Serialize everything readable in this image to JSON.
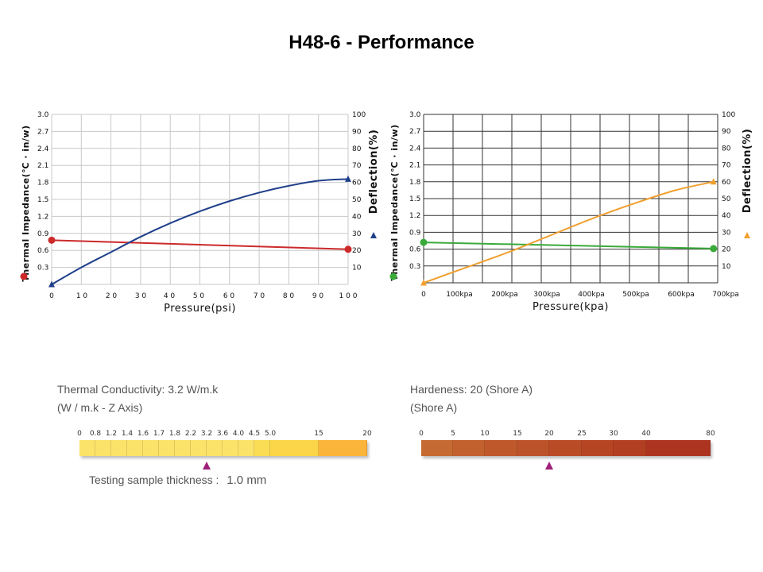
{
  "page": {
    "title": "H48-6 - Performance"
  },
  "chart_data": [
    {
      "type": "line",
      "x_label": "Pressure(psi)",
      "x_ticks": [
        "0",
        "1 0",
        "2 0",
        "3 0",
        "4 0",
        "5 0",
        "6 0",
        "7 0",
        "8 0",
        "9 0",
        "1 0 0"
      ],
      "x_range": [
        0,
        100
      ],
      "y_left_label": "Thermal Impedance(℃ · in/w)",
      "y_left_ticks": [
        "3.0",
        "2.7",
        "2.4",
        "2.1",
        "1.8",
        "1.5",
        "1.2",
        "0.9",
        "0.6",
        "0.3"
      ],
      "y_left_range": [
        0,
        3.0
      ],
      "y_right_label": "Deflection(%)",
      "y_right_ticks": [
        "100",
        "90",
        "80",
        "70",
        "60",
        "50",
        "40",
        "30",
        "20",
        "10"
      ],
      "y_right_range": [
        0,
        100
      ],
      "left_legend_color": "#cc2a2a",
      "right_legend_color": "#1f3f8a",
      "grid_color": "#c8c8c8",
      "series": [
        {
          "name": "Thermal Impedance",
          "axis": "left",
          "color": "#cc2a2a",
          "marker": "circle",
          "x": [
            0,
            100
          ],
          "y": [
            0.78,
            0.62
          ],
          "curve": "linear"
        },
        {
          "name": "Deflection",
          "axis": "right",
          "color": "#1f3f8a",
          "marker": "triangle",
          "x": [
            0,
            10,
            20,
            30,
            40,
            50,
            60,
            70,
            80,
            90,
            100
          ],
          "y": [
            0,
            10,
            19,
            28,
            36,
            43,
            49,
            54,
            58,
            61,
            62
          ]
        }
      ]
    },
    {
      "type": "line",
      "x_label": "Pressure(kpa)",
      "x_ticks": [
        "0",
        "100kpa",
        "200kpa",
        "300kpa",
        "400kpa",
        "500kpa",
        "600kpa",
        "700kpa"
      ],
      "x_range": [
        0,
        700
      ],
      "y_left_label": "Thermal Impedance(℃ · in/w)",
      "y_left_ticks": [
        "3.0",
        "2.7",
        "2.4",
        "2.1",
        "1.8",
        "1.5",
        "1.2",
        "0.9",
        "0.6",
        "0.3"
      ],
      "y_left_range": [
        0,
        3.0
      ],
      "y_right_label": "Deflection(%)",
      "y_right_ticks": [
        "100",
        "90",
        "80",
        "70",
        "60",
        "50",
        "40",
        "30",
        "20",
        "10"
      ],
      "y_right_range": [
        0,
        100
      ],
      "left_legend_color": "#3aaa3a",
      "right_legend_color": "#f0a030",
      "grid_color": "#333333",
      "series": [
        {
          "name": "Thermal Impedance",
          "axis": "left",
          "color": "#3aaa3a",
          "marker": "circle",
          "x": [
            0,
            690
          ],
          "y": [
            0.72,
            0.61
          ]
        },
        {
          "name": "Deflection",
          "axis": "right",
          "color": "#f0a030",
          "marker": "triangle",
          "x": [
            0,
            100,
            200,
            300,
            400,
            500,
            600,
            690
          ],
          "y": [
            0,
            9,
            18,
            28,
            38,
            47,
            55,
            60
          ]
        }
      ]
    }
  ],
  "thermal_panel": {
    "title": "Thermal Conductivity: 3.2 W/m.k",
    "subtitle": "(W / m.k - Z Axis)",
    "scale_labels": [
      "0",
      "0.8",
      "1.2",
      "1.4",
      "1.6",
      "1.7",
      "1.8",
      "2.2",
      "3.2",
      "3.6",
      "4.0",
      "4.5",
      "5.0",
      "15",
      "20"
    ],
    "segment_colors": [
      "#fbe36a",
      "#fbe36a",
      "#fbe36a",
      "#fbe36a",
      "#fbe36a",
      "#fbe36a",
      "#fbe36a",
      "#fbe36a",
      "#fbe36a",
      "#fbe36a",
      "#fbe36a",
      "#fbdd55",
      "#fbd548",
      "#fbb43a"
    ],
    "marker_value": "3.2",
    "note_prefix": "Testing sample thickness :",
    "note_value": "1.0 mm"
  },
  "hardness_panel": {
    "title": "Hardeness: 20 (Shore A)",
    "subtitle": "(Shore A)",
    "scale_labels": [
      "0",
      "5",
      "10",
      "15",
      "20",
      "25",
      "30",
      "40",
      "80"
    ],
    "segment_colors": [
      "#c56a32",
      "#c2602e",
      "#bf582b",
      "#bc5229",
      "#b94b27",
      "#b64524",
      "#b33f22",
      "#ad3420"
    ],
    "marker_value": "20"
  }
}
